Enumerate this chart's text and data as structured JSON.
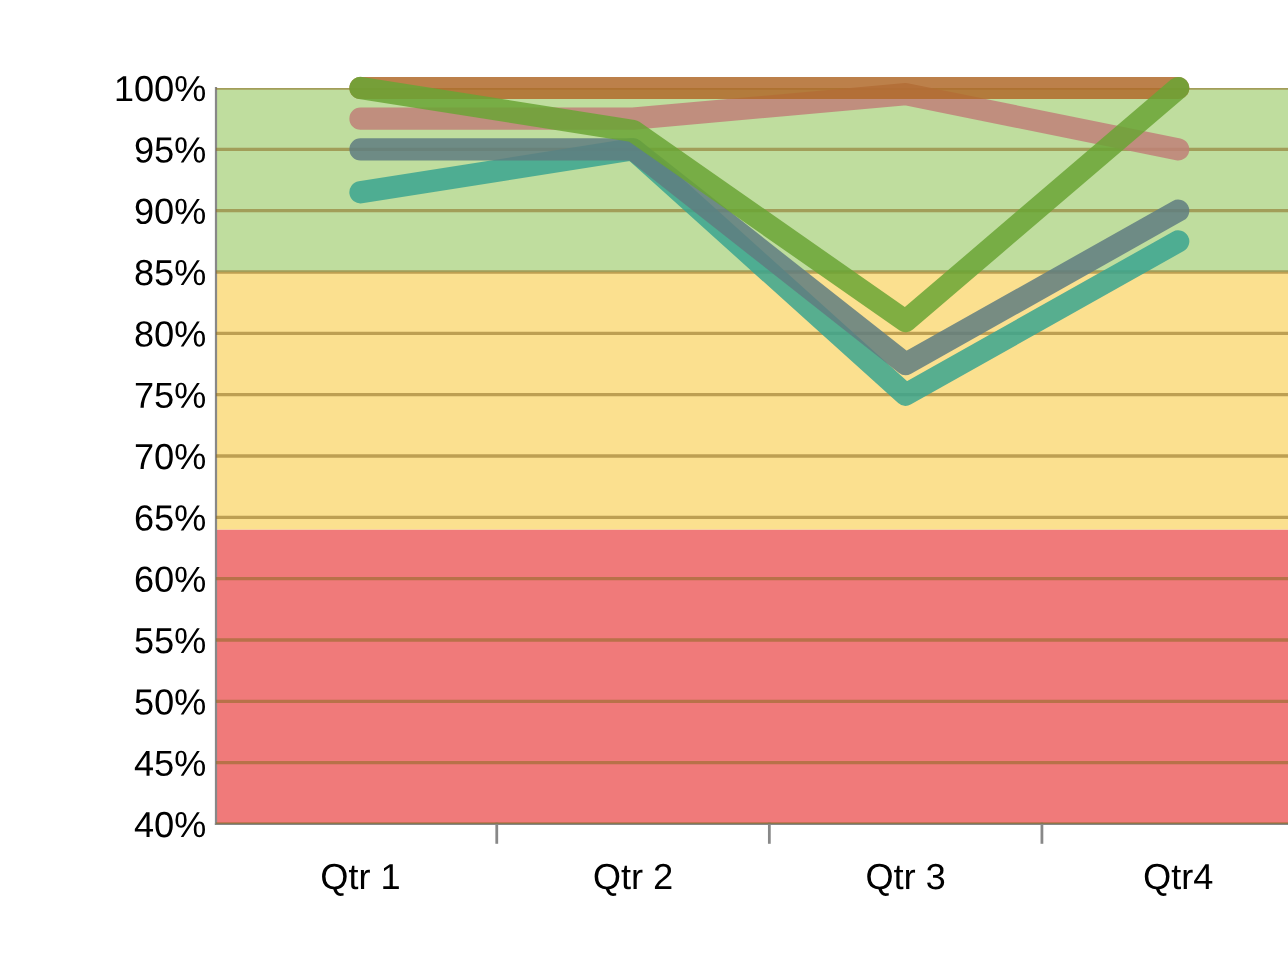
{
  "chart_data": {
    "type": "line",
    "categories": [
      "Qtr 1",
      "Qtr 2",
      "Qtr 3",
      "Qtr4"
    ],
    "series": [
      {
        "color": "#3aa58f",
        "values": [
          91.5,
          95,
          75,
          87.5
        ]
      },
      {
        "color": "#5f7d80",
        "values": [
          95,
          95,
          77.5,
          90
        ]
      },
      {
        "color": "#c08078",
        "values": [
          97.5,
          97.5,
          99.5,
          95
        ]
      },
      {
        "color": "#b06a2a",
        "values": [
          100,
          100,
          100,
          100
        ]
      },
      {
        "color": "#6aa535",
        "values": [
          100,
          96.5,
          81,
          100
        ]
      }
    ],
    "ylim": [
      40,
      100
    ],
    "yticks": [
      {
        "value": 40,
        "label": "40%"
      },
      {
        "value": 45,
        "label": "45%"
      },
      {
        "value": 50,
        "label": "50%"
      },
      {
        "value": 55,
        "label": "55%"
      },
      {
        "value": 60,
        "label": "60%"
      },
      {
        "value": 65,
        "label": "65%"
      },
      {
        "value": 70,
        "label": "70%"
      },
      {
        "value": 75,
        "label": "75%"
      },
      {
        "value": 80,
        "label": "80%"
      },
      {
        "value": 85,
        "label": "85%"
      },
      {
        "value": 90,
        "label": "90%"
      },
      {
        "value": 95,
        "label": "95%"
      },
      {
        "value": 100,
        "label": "100%"
      }
    ],
    "bands": [
      {
        "axis": "y",
        "from": 40,
        "to": 64,
        "color": "#f07a7a"
      },
      {
        "axis": "y",
        "from": 64,
        "to": 85,
        "color": "#fbe08f"
      },
      {
        "axis": "y",
        "from": 85,
        "to": 100,
        "color": "#bfdd9e"
      }
    ],
    "grid": "y",
    "legend": false,
    "marker": "none",
    "line_style": "solid"
  }
}
